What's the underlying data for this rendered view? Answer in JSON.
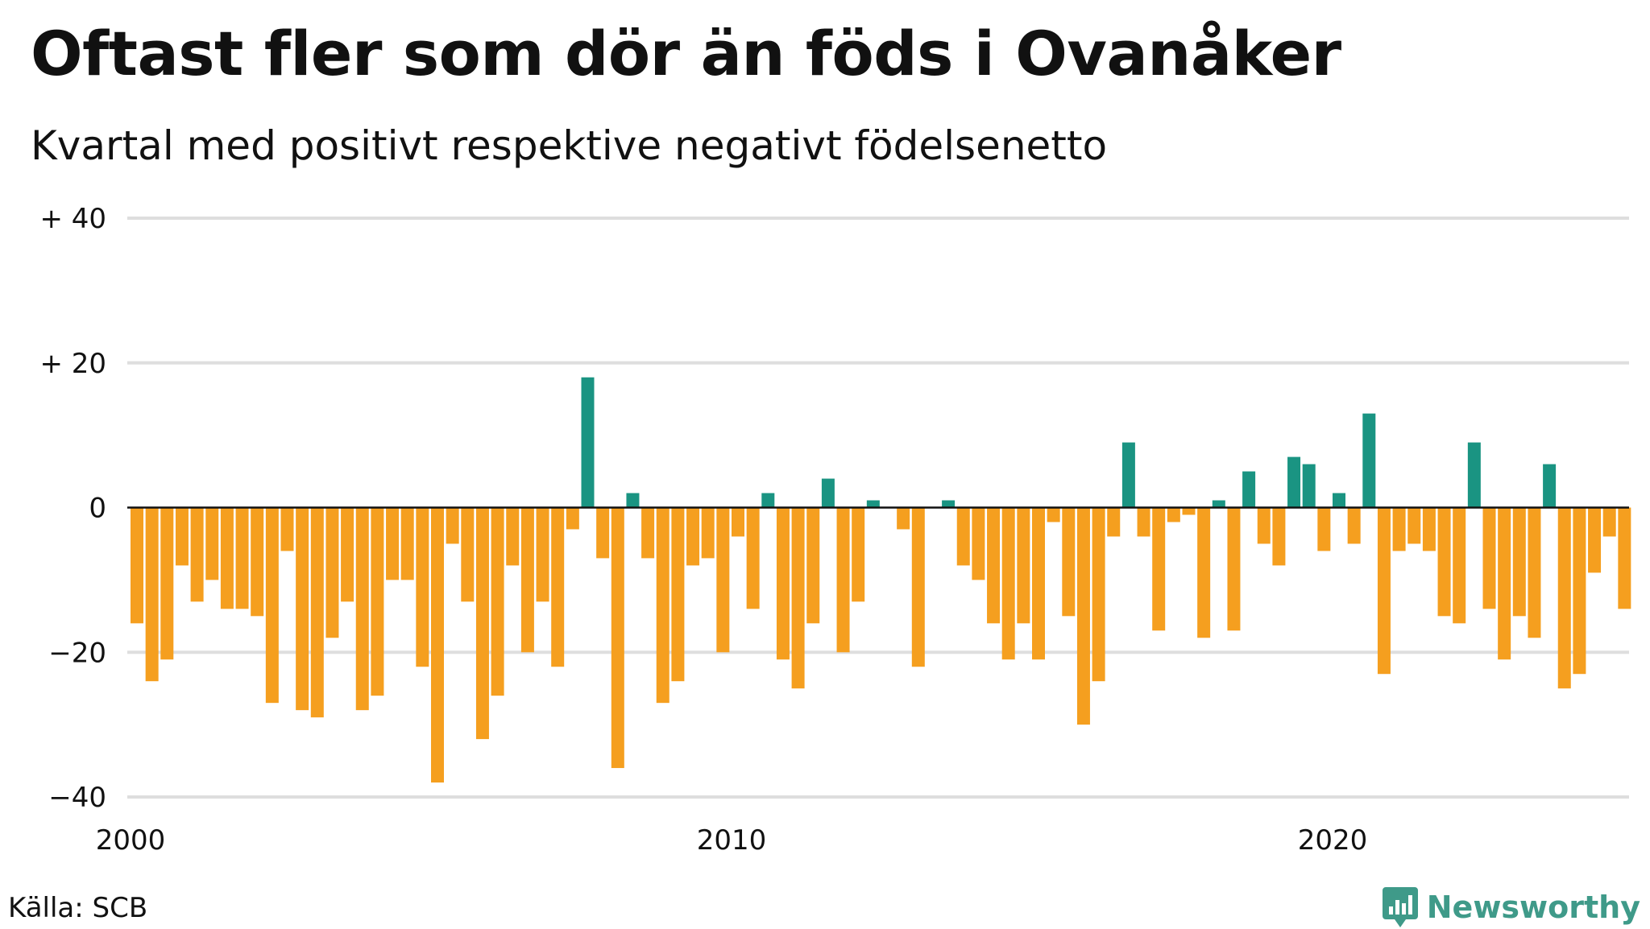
{
  "title": "Oftast fler som dör än föds i Ovanåker",
  "subtitle": "Kvartal med positivt respektive negativt födelsenetto",
  "source": "Källa: SCB",
  "brand": "Newsworthy",
  "brand_icon": "newsworthy-logo-icon",
  "colors": {
    "positive": "#1a9482",
    "negative": "#f59f1f",
    "grid": "#dedede",
    "baseline": "#111111",
    "text": "#111111",
    "brand": "#3f9a89"
  },
  "chart_data": {
    "type": "bar",
    "x_start": "2000 Q1",
    "x_ticks": [
      "2000",
      "2010",
      "2020"
    ],
    "y_tick_labels": [
      "+ 40",
      "+ 20",
      "0",
      "−20",
      "−40"
    ],
    "y_ticks": [
      40,
      20,
      0,
      -20,
      -40
    ],
    "ylim": [
      -40,
      40
    ],
    "grid": true,
    "values": [
      -16,
      -24,
      -21,
      -8,
      -13,
      -10,
      -14,
      -14,
      -15,
      -27,
      -6,
      -28,
      -29,
      -18,
      -13,
      -28,
      -26,
      -10,
      -10,
      -22,
      -38,
      -5,
      -13,
      -32,
      -26,
      -8,
      -20,
      -13,
      -22,
      -3,
      18,
      -7,
      -36,
      2,
      -7,
      -27,
      -24,
      -8,
      -7,
      -20,
      -4,
      -14,
      2,
      -21,
      -25,
      -16,
      4,
      -20,
      -13,
      1,
      0,
      -3,
      -22,
      0,
      1,
      -8,
      -10,
      -16,
      -21,
      -16,
      -21,
      -2,
      -15,
      -30,
      -24,
      -4,
      9,
      -4,
      -17,
      -2,
      -1,
      -18,
      1,
      -17,
      5,
      -5,
      -8,
      7,
      6,
      -6,
      2,
      -5,
      13,
      -23,
      -6,
      -5,
      -6,
      -15,
      -16,
      9,
      -14,
      -21,
      -15,
      -18,
      6,
      -25,
      -23,
      -9,
      -4,
      -14
    ]
  }
}
